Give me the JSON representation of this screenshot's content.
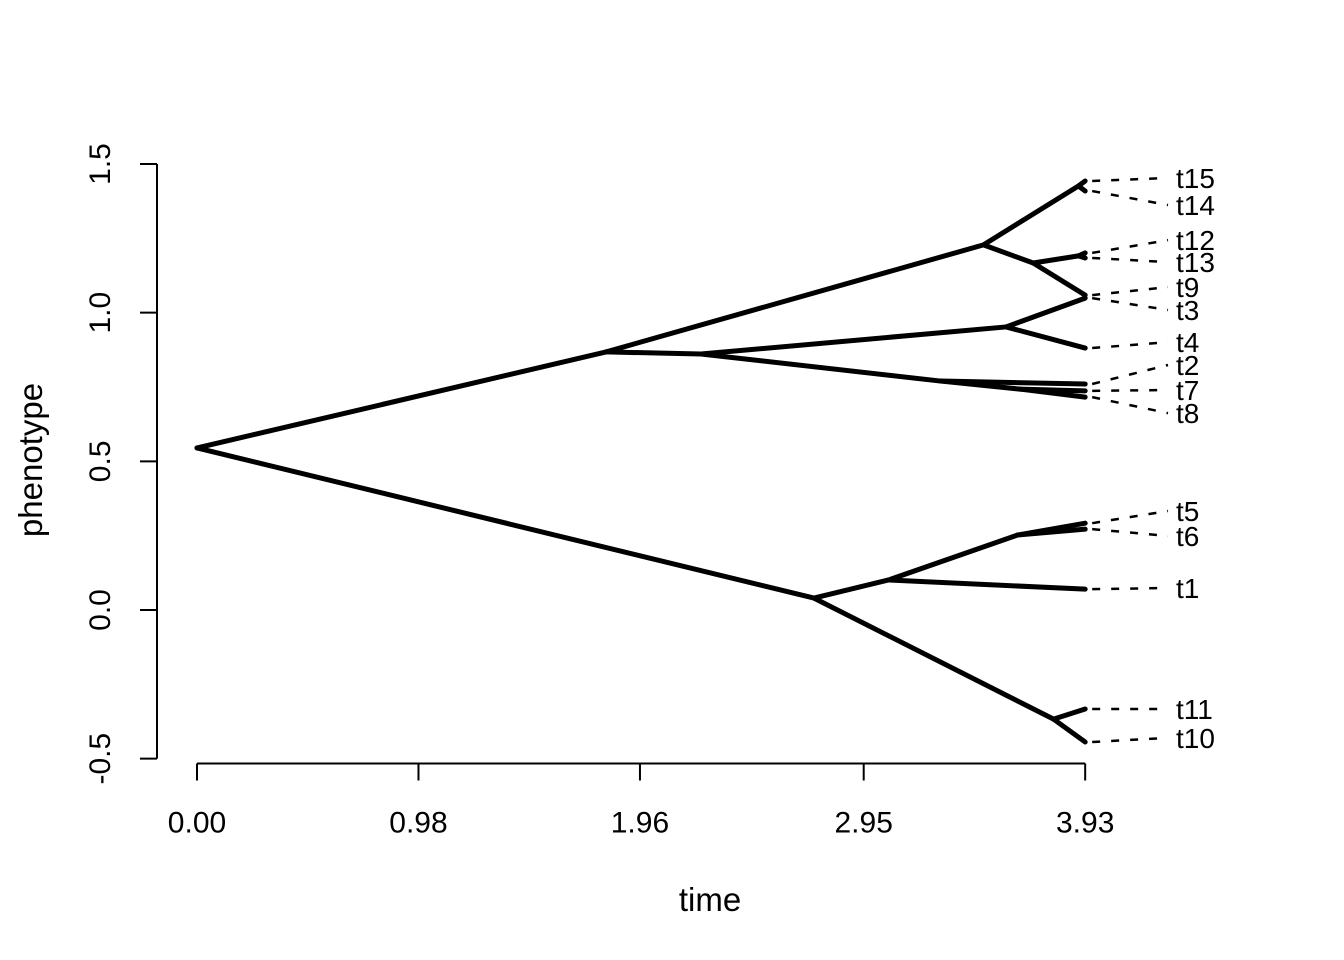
{
  "chart_data": {
    "type": "line",
    "subtype": "phenogram-tree",
    "title": "",
    "xlabel": "time",
    "ylabel": "phenotype",
    "xlim": [
      0,
      3.93
    ],
    "ylim": [
      -0.5,
      1.5
    ],
    "grid": false,
    "legend": false,
    "background_color": "#ffffff",
    "line_color": "#000000",
    "text_color": "#000000",
    "x_ticks": {
      "values": [
        0.0,
        0.98,
        1.96,
        2.95,
        3.93
      ],
      "labels": [
        "0.00",
        "0.98",
        "1.96",
        "2.95",
        "3.93"
      ]
    },
    "y_ticks": {
      "values": [
        -0.5,
        0.0,
        0.5,
        1.0,
        1.5
      ],
      "labels": [
        "-0.5",
        "0.0",
        "0.5",
        "1.0",
        "1.5"
      ]
    },
    "tip_time": 3.93,
    "nodes": {
      "root": {
        "t": 0.0,
        "v": 0.545
      },
      "D": {
        "t": 1.81,
        "v": 0.868
      },
      "E": {
        "t": 2.23,
        "v": 0.861
      },
      "A": {
        "t": 3.48,
        "v": 1.228
      },
      "M1": {
        "t": 3.9,
        "v": 1.426
      },
      "B": {
        "t": 3.7,
        "v": 1.167
      },
      "M2": {
        "t": 3.9,
        "v": 1.191
      },
      "C": {
        "t": 3.58,
        "v": 0.952
      },
      "J": {
        "t": 3.29,
        "v": 0.77
      },
      "K": {
        "t": 3.64,
        "v": 0.743
      },
      "F": {
        "t": 2.73,
        "v": 0.04
      },
      "G": {
        "t": 3.06,
        "v": 0.101
      },
      "H": {
        "t": 3.63,
        "v": 0.252
      },
      "t15": {
        "t": 3.93,
        "v": 1.443
      },
      "t14": {
        "t": 3.93,
        "v": 1.409
      },
      "t12": {
        "t": 3.93,
        "v": 1.201
      },
      "t13": {
        "t": 3.93,
        "v": 1.184
      },
      "t9": {
        "t": 3.93,
        "v": 1.059
      },
      "t3": {
        "t": 3.93,
        "v": 1.049
      },
      "t4": {
        "t": 3.93,
        "v": 0.881
      },
      "t2": {
        "t": 3.93,
        "v": 0.76
      },
      "t7": {
        "t": 3.93,
        "v": 0.737
      },
      "t8": {
        "t": 3.93,
        "v": 0.716
      },
      "t5": {
        "t": 3.93,
        "v": 0.292
      },
      "t6": {
        "t": 3.93,
        "v": 0.272
      },
      "t1": {
        "t": 3.93,
        "v": 0.07
      },
      "t11": {
        "t": 3.93,
        "v": -0.333
      },
      "t10": {
        "t": 3.93,
        "v": -0.444
      }
    },
    "edges": [
      [
        "root",
        "D"
      ],
      [
        "root",
        "F"
      ],
      [
        "D",
        "A"
      ],
      [
        "D",
        "E"
      ],
      [
        "A",
        "M1"
      ],
      [
        "M1",
        "t15"
      ],
      [
        "M1",
        "t14"
      ],
      [
        "A",
        "B"
      ],
      [
        "B",
        "M2"
      ],
      [
        "M2",
        "t12"
      ],
      [
        "M2",
        "t13"
      ],
      [
        "B",
        "t9"
      ],
      [
        "E",
        "C"
      ],
      [
        "C",
        "t3"
      ],
      [
        "C",
        "t4"
      ],
      [
        "E",
        "J"
      ],
      [
        "J",
        "t2"
      ],
      [
        "J",
        "K"
      ],
      [
        "K",
        "t7"
      ],
      [
        "K",
        "t8"
      ],
      [
        "F",
        "G"
      ],
      [
        "G",
        "H"
      ],
      [
        "H",
        "t5"
      ],
      [
        "H",
        "t6"
      ],
      [
        "G",
        "t1"
      ],
      [
        "F",
        "I_node"
      ],
      [
        "I_node",
        "t11"
      ],
      [
        "I_node",
        "t10"
      ]
    ],
    "extra_nodes": {
      "I_node": {
        "t": 3.79,
        "v": -0.367
      }
    },
    "tips": [
      {
        "id": "t15",
        "label": "t15",
        "phenotype": 1.443,
        "label_phenotype": 1.453
      },
      {
        "id": "t14",
        "label": "t14",
        "phenotype": 1.409,
        "label_phenotype": 1.362
      },
      {
        "id": "t12",
        "label": "t12",
        "phenotype": 1.201,
        "label_phenotype": 1.244
      },
      {
        "id": "t13",
        "label": "t13",
        "phenotype": 1.184,
        "label_phenotype": 1.17
      },
      {
        "id": "t9",
        "label": "t9",
        "phenotype": 1.059,
        "label_phenotype": 1.086
      },
      {
        "id": "t3",
        "label": "t3",
        "phenotype": 1.049,
        "label_phenotype": 1.009
      },
      {
        "id": "t4",
        "label": "t4",
        "phenotype": 0.881,
        "label_phenotype": 0.901
      },
      {
        "id": "t2",
        "label": "t2",
        "phenotype": 0.76,
        "label_phenotype": 0.824
      },
      {
        "id": "t7",
        "label": "t7",
        "phenotype": 0.737,
        "label_phenotype": 0.74
      },
      {
        "id": "t8",
        "label": "t8",
        "phenotype": 0.716,
        "label_phenotype": 0.662
      },
      {
        "id": "t5",
        "label": "t5",
        "phenotype": 0.292,
        "label_phenotype": 0.333
      },
      {
        "id": "t6",
        "label": "t6",
        "phenotype": 0.272,
        "label_phenotype": 0.249
      },
      {
        "id": "t1",
        "label": "t1",
        "phenotype": 0.07,
        "label_phenotype": 0.074
      },
      {
        "id": "t11",
        "label": "t11",
        "phenotype": -0.333,
        "label_phenotype": -0.333
      },
      {
        "id": "t10",
        "label": "t10",
        "phenotype": -0.444,
        "label_phenotype": -0.43
      }
    ]
  }
}
